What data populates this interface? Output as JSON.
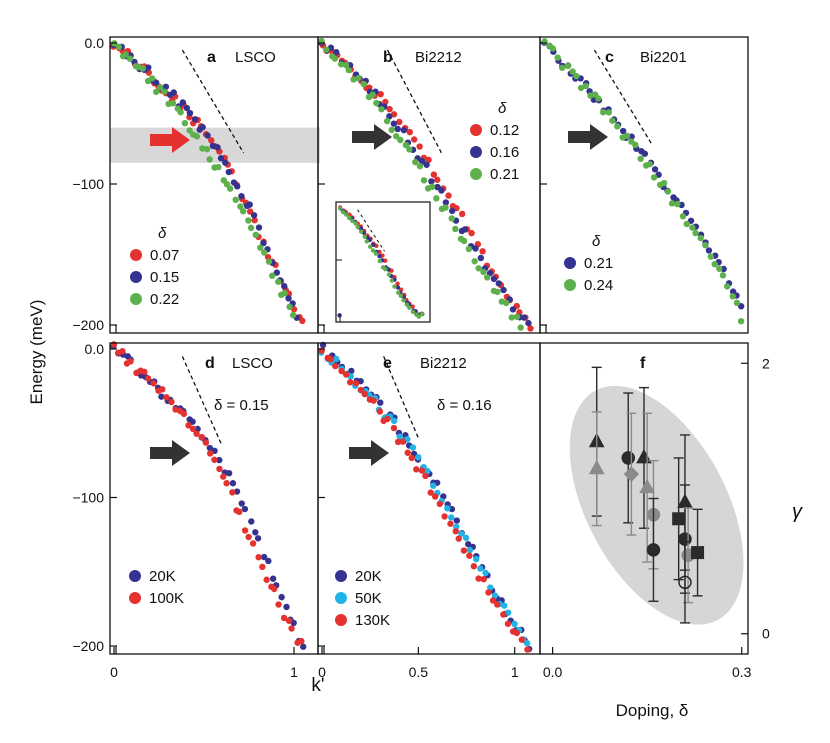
{
  "figure": {
    "ylabel": "Energy (meV)",
    "xlabel": "k'",
    "gamma_label": "γ",
    "delta_symbol": "δ",
    "colors": {
      "red": "#e3322f",
      "blue": "#35338f",
      "green": "#5db04c",
      "lightblue": "#22b3e6",
      "band": "#d8d8d8",
      "arrow_red": "#e3322f",
      "arrow_black": "#333333",
      "ellipse": "#d6d6d6"
    }
  },
  "chart_data": [
    {
      "id": "a",
      "type": "scatter",
      "panel_letter": "a",
      "title": "LSCO",
      "xlim": [
        0,
        1.1
      ],
      "ylim": [
        -200,
        0
      ],
      "xticks": [],
      "ytick_labels": [
        "0.0",
        "−100",
        "−200"
      ],
      "legend_title": "δ",
      "legend_position": "bottom-left",
      "highlight_band": [
        -60,
        -85
      ],
      "series": [
        {
          "name": "0.07",
          "color": "red",
          "points": [
            [
              0,
              0
            ],
            [
              0.15,
              -17
            ],
            [
              0.3,
              -35
            ],
            [
              0.45,
              -55
            ],
            [
              0.55,
              -70
            ],
            [
              0.62,
              -85
            ],
            [
              0.72,
              -110
            ],
            [
              0.85,
              -148
            ],
            [
              0.95,
              -175
            ],
            [
              1.05,
              -198
            ]
          ]
        },
        {
          "name": "0.15",
          "color": "blue",
          "points": [
            [
              0,
              0
            ],
            [
              0.15,
              -16
            ],
            [
              0.3,
              -33
            ],
            [
              0.45,
              -55
            ],
            [
              0.55,
              -72
            ],
            [
              0.64,
              -90
            ],
            [
              0.75,
              -115
            ],
            [
              0.86,
              -150
            ],
            [
              0.97,
              -178
            ],
            [
              1.02,
              -193
            ]
          ]
        },
        {
          "name": "0.22",
          "color": "green",
          "points": [
            [
              0,
              0
            ],
            [
              0.14,
              -18
            ],
            [
              0.28,
              -38
            ],
            [
              0.4,
              -57
            ],
            [
              0.5,
              -75
            ],
            [
              0.6,
              -95
            ],
            [
              0.72,
              -120
            ],
            [
              0.84,
              -152
            ],
            [
              0.94,
              -178
            ],
            [
              1.0,
              -195
            ]
          ]
        }
      ],
      "dashed": [
        [
          0.38,
          -5
        ],
        [
          0.72,
          -78
        ]
      ]
    },
    {
      "id": "b",
      "type": "scatter",
      "panel_letter": "b",
      "title": "Bi2212",
      "xlim": [
        0,
        1.1
      ],
      "ylim": [
        -200,
        0
      ],
      "xticks": [],
      "ytick_labels": [],
      "legend_title": "δ",
      "legend_position": "top-right",
      "series": [
        {
          "name": "0.12",
          "color": "red",
          "points": [
            [
              0,
              0
            ],
            [
              0.12,
              -14
            ],
            [
              0.25,
              -31
            ],
            [
              0.38,
              -50
            ],
            [
              0.5,
              -72
            ],
            [
              0.6,
              -95
            ],
            [
              0.72,
              -122
            ],
            [
              0.85,
              -155
            ],
            [
              0.98,
              -182
            ],
            [
              1.08,
              -200
            ]
          ]
        },
        {
          "name": "0.16",
          "color": "blue",
          "points": [
            [
              0,
              0
            ],
            [
              0.12,
              -15
            ],
            [
              0.25,
              -33
            ],
            [
              0.36,
              -53
            ],
            [
              0.48,
              -75
            ],
            [
              0.58,
              -98
            ],
            [
              0.7,
              -124
            ],
            [
              0.83,
              -155
            ],
            [
              0.96,
              -182
            ],
            [
              1.07,
              -200
            ]
          ]
        },
        {
          "name": "0.21",
          "color": "green",
          "points": [
            [
              0,
              0
            ],
            [
              0.12,
              -16
            ],
            [
              0.24,
              -35
            ],
            [
              0.35,
              -57
            ],
            [
              0.46,
              -80
            ],
            [
              0.56,
              -102
            ],
            [
              0.68,
              -127
            ],
            [
              0.8,
              -156
            ],
            [
              0.93,
              -182
            ],
            [
              1.03,
              -200
            ]
          ]
        }
      ],
      "dashed": [
        [
          0.34,
          -5
        ],
        [
          0.62,
          -78
        ]
      ]
    },
    {
      "id": "c",
      "type": "scatter",
      "panel_letter": "c",
      "title": "Bi2201",
      "xlim": [
        0,
        1.1
      ],
      "ylim": [
        -200,
        0
      ],
      "xticks": [],
      "ytick_labels": [],
      "legend_title": "δ",
      "legend_position": "bottom-left",
      "series": [
        {
          "name": "0.21",
          "color": "blue",
          "points": [
            [
              0,
              0
            ],
            [
              0.15,
              -20
            ],
            [
              0.3,
              -40
            ],
            [
              0.45,
              -64
            ],
            [
              0.6,
              -88
            ],
            [
              0.75,
              -115
            ],
            [
              0.9,
              -143
            ],
            [
              1.02,
              -168
            ],
            [
              1.1,
              -190
            ]
          ]
        },
        {
          "name": "0.24",
          "color": "green",
          "points": [
            [
              0,
              0
            ],
            [
              0.15,
              -21
            ],
            [
              0.3,
              -42
            ],
            [
              0.45,
              -66
            ],
            [
              0.6,
              -90
            ],
            [
              0.75,
              -118
            ],
            [
              0.9,
              -146
            ],
            [
              1.03,
              -172
            ],
            [
              1.1,
              -198
            ]
          ]
        }
      ],
      "dashed": [
        [
          0.28,
          -5
        ],
        [
          0.6,
          -72
        ]
      ]
    },
    {
      "id": "d",
      "type": "scatter",
      "panel_letter": "d",
      "title": "LSCO",
      "annotation": "δ = 0.15",
      "xlim": [
        0,
        1.1
      ],
      "ylim": [
        -200,
        0
      ],
      "xtick_labels": [
        "0",
        "1"
      ],
      "xticks": [
        0,
        1
      ],
      "ytick_labels": [
        "0.0",
        "−100",
        "−200"
      ],
      "legend_position": "bottom-left",
      "series": [
        {
          "name": "20K",
          "color": "blue",
          "points": [
            [
              0,
              0
            ],
            [
              0.15,
              -15
            ],
            [
              0.3,
              -33
            ],
            [
              0.45,
              -52
            ],
            [
              0.58,
              -72
            ],
            [
              0.68,
              -95
            ],
            [
              0.78,
              -123
            ],
            [
              0.88,
              -152
            ],
            [
              0.97,
              -178
            ],
            [
              1.05,
              -200
            ]
          ]
        },
        {
          "name": "100K",
          "color": "red",
          "points": [
            [
              0,
              0
            ],
            [
              0.15,
              -16
            ],
            [
              0.3,
              -34
            ],
            [
              0.45,
              -54
            ],
            [
              0.56,
              -75
            ],
            [
              0.66,
              -100
            ],
            [
              0.76,
              -128
            ],
            [
              0.87,
              -158
            ],
            [
              0.96,
              -183
            ],
            [
              1.04,
              -200
            ]
          ]
        }
      ],
      "dashed": [
        [
          0.38,
          -5
        ],
        [
          0.6,
          -65
        ]
      ]
    },
    {
      "id": "e",
      "type": "scatter",
      "panel_letter": "e",
      "title": "Bi2212",
      "annotation": "δ = 0.16",
      "xlim": [
        0,
        1.1
      ],
      "ylim": [
        -200,
        0
      ],
      "xtick_labels": [
        "0",
        "0.5",
        "1"
      ],
      "xticks": [
        0,
        0.5,
        1
      ],
      "ytick_labels": [],
      "legend_position": "bottom-left",
      "series": [
        {
          "name": "20K",
          "color": "blue",
          "points": [
            [
              0,
              0
            ],
            [
              0.12,
              -14
            ],
            [
              0.25,
              -31
            ],
            [
              0.38,
              -50
            ],
            [
              0.5,
              -72
            ],
            [
              0.62,
              -97
            ],
            [
              0.74,
              -125
            ],
            [
              0.86,
              -155
            ],
            [
              0.97,
              -180
            ],
            [
              1.08,
              -200
            ]
          ]
        },
        {
          "name": "50K",
          "color": "lightblue",
          "points": [
            [
              0,
              0
            ],
            [
              0.12,
              -15
            ],
            [
              0.25,
              -32
            ],
            [
              0.38,
              -52
            ],
            [
              0.5,
              -74
            ],
            [
              0.62,
              -99
            ],
            [
              0.74,
              -127
            ],
            [
              0.86,
              -156
            ],
            [
              0.97,
              -181
            ],
            [
              1.07,
              -200
            ]
          ]
        },
        {
          "name": "130K",
          "color": "red",
          "points": [
            [
              0,
              0
            ],
            [
              0.12,
              -16
            ],
            [
              0.25,
              -34
            ],
            [
              0.37,
              -55
            ],
            [
              0.48,
              -77
            ],
            [
              0.6,
              -102
            ],
            [
              0.72,
              -130
            ],
            [
              0.84,
              -158
            ],
            [
              0.95,
              -182
            ],
            [
              1.06,
              -200
            ]
          ]
        }
      ],
      "dashed": [
        [
          0.32,
          -5
        ],
        [
          0.5,
          -60
        ]
      ]
    },
    {
      "id": "f",
      "type": "scatter",
      "panel_letter": "f",
      "xlabel": "Doping, δ",
      "ylabel": "γ",
      "xlim": [
        -0.02,
        0.31
      ],
      "ylim": [
        -0.15,
        2.15
      ],
      "xticks": [
        0.0,
        0.3
      ],
      "xtick_labels": [
        "0.0",
        "0.3"
      ],
      "yticks": [
        0,
        2
      ],
      "ytick_labels": [
        "0",
        "2"
      ],
      "points": [
        {
          "x": 0.07,
          "y": 1.42,
          "err": 0.55,
          "marker": "triangle",
          "shade": "dark"
        },
        {
          "x": 0.07,
          "y": 1.22,
          "err": 0.42,
          "marker": "triangle",
          "shade": "gray"
        },
        {
          "x": 0.12,
          "y": 1.3,
          "err": 0.48,
          "marker": "circle",
          "shade": "dark"
        },
        {
          "x": 0.125,
          "y": 1.18,
          "err": 0.45,
          "marker": "diamond",
          "shade": "gray"
        },
        {
          "x": 0.145,
          "y": 1.3,
          "err": 0.52,
          "marker": "triangle",
          "shade": "dark"
        },
        {
          "x": 0.15,
          "y": 1.08,
          "err": 0.55,
          "marker": "triangle",
          "shade": "gray"
        },
        {
          "x": 0.16,
          "y": 0.88,
          "err": 0.4,
          "marker": "circle",
          "shade": "gray"
        },
        {
          "x": 0.16,
          "y": 0.62,
          "err": 0.38,
          "marker": "circle",
          "shade": "dark"
        },
        {
          "x": 0.2,
          "y": 0.85,
          "err": 0.45,
          "marker": "square",
          "shade": "dark"
        },
        {
          "x": 0.21,
          "y": 0.97,
          "err": 0.5,
          "marker": "triangle",
          "shade": "dark"
        },
        {
          "x": 0.21,
          "y": 0.7,
          "err": 0.4,
          "marker": "circle",
          "shade": "dark"
        },
        {
          "x": 0.215,
          "y": 0.58,
          "err": 0.35,
          "marker": "circle",
          "shade": "gray"
        },
        {
          "x": 0.21,
          "y": 0.38,
          "err": 0.3,
          "marker": "circle",
          "shade": "open"
        },
        {
          "x": 0.23,
          "y": 0.6,
          "err": 0.32,
          "marker": "square",
          "shade": "dark"
        }
      ]
    }
  ]
}
